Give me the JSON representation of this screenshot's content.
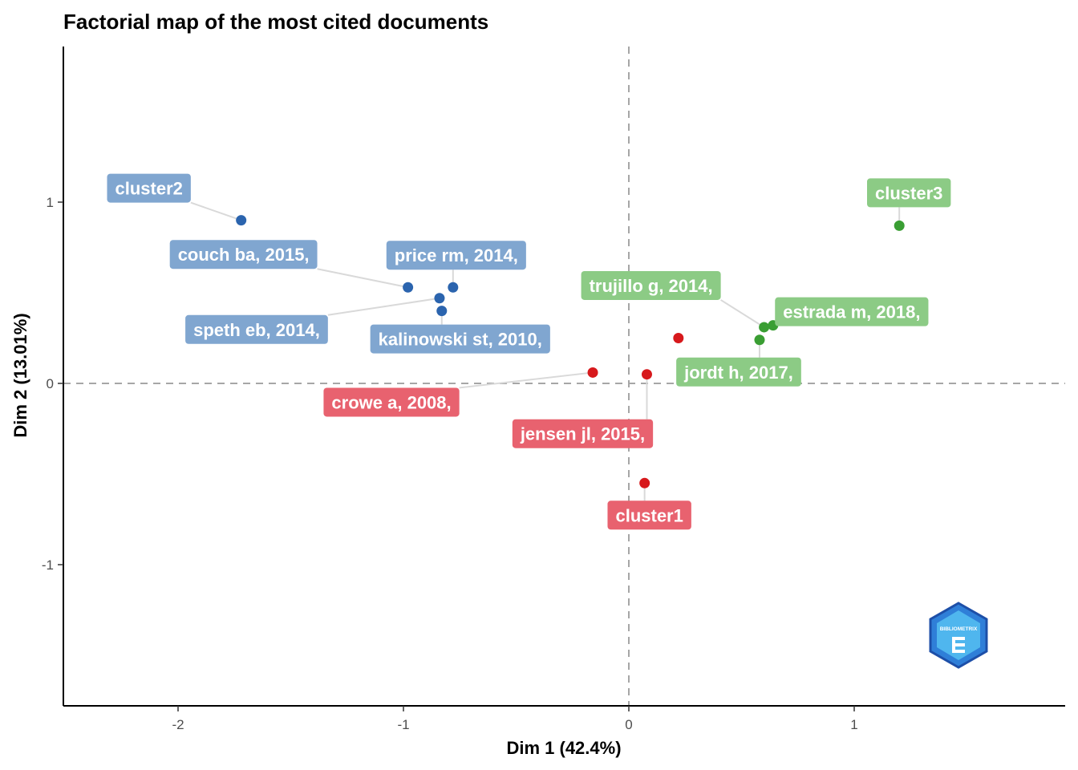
{
  "chart_data": {
    "type": "scatter",
    "title": "Factorial map of the most cited documents",
    "xlabel": "Dim 1 (42.4%)",
    "ylabel": "Dim 2 (13.01%)",
    "xlim": [
      -2.5,
      1.9
    ],
    "ylim": [
      -1.78,
      1.85
    ],
    "xticks": [
      -2,
      -1,
      0,
      1
    ],
    "yticks": [
      -1,
      0,
      1
    ],
    "xtick_labels": [
      "-2",
      "-1",
      "0",
      "1"
    ],
    "ytick_labels": [
      "-1",
      "0",
      "1"
    ],
    "reference_lines": {
      "x": 0,
      "y": 0,
      "style": "dashed"
    },
    "grid": false,
    "legend": "none",
    "colors": {
      "cluster1_point": "#d7191c",
      "cluster1_label": "#e8626f",
      "cluster2_point": "#2b64ae",
      "cluster2_label": "#80a6d0",
      "cluster3_point": "#3a9e33",
      "cluster3_label": "#8ccb85",
      "leader": "#d9d9d9",
      "refline": "#a6a6a6"
    },
    "series": [
      {
        "cluster": 1,
        "points": [
          {
            "label": "cluster1",
            "x": 0.07,
            "y": -0.55
          },
          {
            "label": "crowe a, 2008,",
            "x": -0.16,
            "y": 0.06
          },
          {
            "label": "jensen jl, 2015,",
            "x": 0.08,
            "y": 0.05
          },
          {
            "label": "",
            "x": 0.22,
            "y": 0.25
          }
        ]
      },
      {
        "cluster": 2,
        "points": [
          {
            "label": "cluster2",
            "x": -1.72,
            "y": 0.9
          },
          {
            "label": "couch ba, 2015,",
            "x": -0.98,
            "y": 0.53
          },
          {
            "label": "price rm, 2014,",
            "x": -0.78,
            "y": 0.53
          },
          {
            "label": "speth eb, 2014,",
            "x": -0.84,
            "y": 0.47
          },
          {
            "label": "kalinowski st, 2010,",
            "x": -0.83,
            "y": 0.4
          }
        ]
      },
      {
        "cluster": 3,
        "points": [
          {
            "label": "cluster3",
            "x": 1.2,
            "y": 0.87
          },
          {
            "label": "trujillo g, 2014,",
            "x": 0.6,
            "y": 0.31
          },
          {
            "label": "estrada m, 2018,",
            "x": 0.64,
            "y": 0.32
          },
          {
            "label": "jordt h, 2017,",
            "x": 0.58,
            "y": 0.24
          }
        ]
      }
    ]
  },
  "logo": {
    "text": "BIBLIOMETRIX",
    "icon": "bibliometrix-logo"
  }
}
